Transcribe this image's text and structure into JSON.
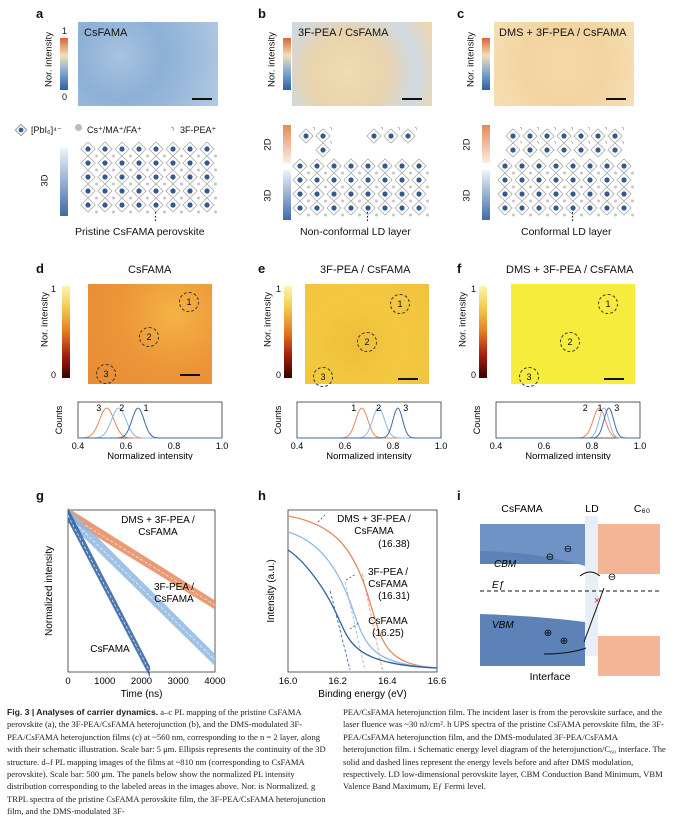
{
  "panels": {
    "a": {
      "label": "a",
      "title": "CsFAMA",
      "bottom": "Pristine CsFAMA perovskite"
    },
    "b": {
      "label": "b",
      "title": "3F-PEA / CsFAMA",
      "bottom": "Non-conformal LD layer"
    },
    "c": {
      "label": "c",
      "title": "DMS + 3F-PEA / CsFAMA",
      "bottom": "Conformal LD layer"
    },
    "d": {
      "label": "d",
      "title": "CsFAMA",
      "peaks": [
        "3",
        "2",
        "1"
      ]
    },
    "e": {
      "label": "e",
      "title": "3F-PEA / CsFAMA",
      "peaks": [
        "1",
        "2",
        "3"
      ]
    },
    "f": {
      "label": "f",
      "title": "DMS + 3F-PEA / CsFAMA",
      "peaks": [
        "2",
        "1",
        "3"
      ]
    },
    "g": {
      "label": "g"
    },
    "h": {
      "label": "h"
    },
    "i": {
      "label": "i"
    }
  },
  "common": {
    "nor_intensity": "Nor. intensity",
    "cb_top": "1",
    "cb_bottom": "0",
    "counts": "Counts",
    "normalized_intensity": "Normalized intensity",
    "ellipsis": "⋮",
    "label_2d": "2D",
    "label_3d": "3D",
    "circles": [
      "1",
      "2",
      "3"
    ]
  },
  "legend": {
    "pbi": "[PbI₆]⁴⁻",
    "cs": "Cs⁺/MA⁺/FA⁺",
    "pea": "3F-PEA⁺"
  },
  "hist_axis": {
    "ticks": [
      "0.4",
      "0.6",
      "0.8",
      "1.0"
    ]
  },
  "chart_data": [
    {
      "type": "scatter",
      "panel": "g",
      "ylabel": "Normalized intensity",
      "xlabel": "Time (ns)",
      "xlim": [
        0,
        4000
      ],
      "xticks": [
        "0",
        "1000",
        "2000",
        "3000",
        "4000"
      ],
      "series": [
        {
          "name": "DMS + 3F-PEA / CsFAMA",
          "color": "#e58a5e"
        },
        {
          "name": "3F-PEA / CsFAMA",
          "color": "#8fb8e0"
        },
        {
          "name": "CsFAMA",
          "color": "#2e5fa0"
        }
      ],
      "labels": [
        "DMS + 3F-PEA /",
        "CsFAMA",
        "3F-PEA /",
        "CsFAMA",
        "CsFAMA"
      ]
    },
    {
      "type": "line",
      "panel": "h",
      "ylabel": "Intensity (a.u.)",
      "xlabel": "Binding energy (eV)",
      "xlim": [
        16.0,
        16.6
      ],
      "xticks": [
        "16.0",
        "16.2",
        "16.4",
        "16.6"
      ],
      "series": [
        {
          "name": "DMS + 3F-PEA / CsFAMA",
          "value": "(16.38)",
          "color": "#e58a5e"
        },
        {
          "name": "3F-PEA / CsFAMA",
          "value": "(16.31)",
          "color": "#8fb8e0"
        },
        {
          "name": "CsFAMA",
          "value": "(16.25)",
          "color": "#2e5fa0"
        }
      ],
      "labels": [
        "DMS + 3F-PEA /",
        "CsFAMA",
        "(16.38)",
        "3F-PEA /",
        "CsFAMA",
        "(16.31)",
        "CsFAMA",
        "(16.25)"
      ]
    }
  ],
  "diagram_i": {
    "csfama": "CsFAMA",
    "ld": "LD",
    "c60": "C₆₀",
    "cbm": "CBM",
    "ef": "Eƒ",
    "vbm": "VBM",
    "interface": "Interface",
    "minus": "⊖",
    "plus": "⊕"
  },
  "caption": {
    "fig": "Fig. 3 | Analyses of carrier dynamics.",
    "left": " a–c PL mapping of the pristine CsFAMA perovskite (a), the 3F-PEA/CsFAMA heterojunction (b), and the DMS-modulated 3F-PEA/CsFAMA heterojunction films (c) at ~560 nm, corresponding to the n = 2 layer, along with their schematic illustration. Scale bar: 5 μm. Ellipsis represents the continuity of the 3D structure. d–f PL mapping images of the films at ~810 nm (corresponding to CsFAMA perovskite). Scale bar: 500 μm. The panels below show the normalized PL intensity distribution corresponding to the labeled areas in the images above. Nor. is Normalized. g TRPL spectra of the pristine CsFAMA perovskite film, the 3F-PEA/CsFAMA heterojunction film, and the DMS-modulated 3F-",
    "right": "PEA/CsFAMA heterojunction film. The incident laser is from the perovskite surface, and the laser fluence was ~30 nJ/cm². h UPS spectra of the pristine CsFAMA perovskite film, the 3F-PEA/CsFAMA heterojunction film, and the DMS-modulated 3F-PEA/CsFAMA heterojunction film. i Schematic energy level diagram of the heterojunction/C₆₀ interface. The solid and dashed lines represent the energy levels before and after DMS modulation, respectively. LD low-dimensional perovskite layer, CBM Conduction Band Minimum, VBM Valence Band Maximum, Eƒ Fermi level."
  }
}
